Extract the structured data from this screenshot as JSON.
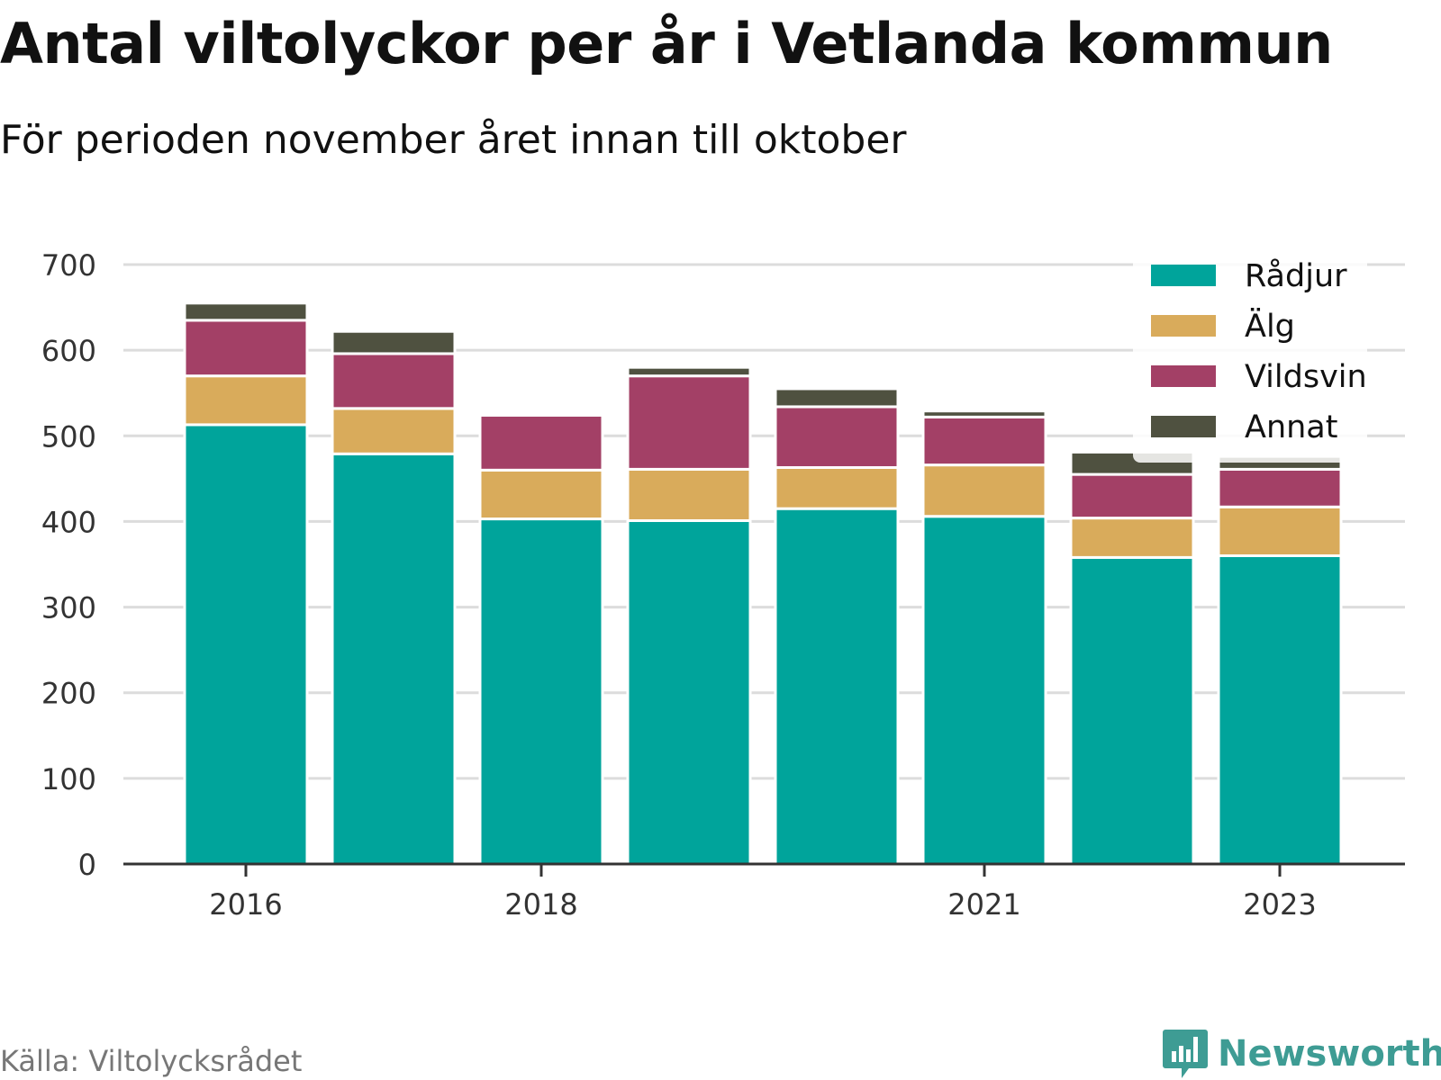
{
  "title": "Antal viltolyckor per år i Vetlanda kommun",
  "subtitle": "För perioden november året innan till oktober",
  "source": "Källa: Viltolycksrådet",
  "brand": "Newsworthy",
  "chart_data": {
    "type": "bar",
    "stacked": true,
    "categories": [
      "2016",
      "2017",
      "2018",
      "2019",
      "2020",
      "2021",
      "2022",
      "2023"
    ],
    "x_tick_labels": [
      "2016",
      "2018",
      "2021",
      "2023"
    ],
    "ylim": [
      0,
      700
    ],
    "y_ticks": [
      0,
      100,
      200,
      300,
      400,
      500,
      600,
      700
    ],
    "grid": true,
    "legend_position": "top-right",
    "series": [
      {
        "name": "Rådjur",
        "color": "#00a49b",
        "values": [
          513,
          479,
          403,
          401,
          415,
          406,
          358,
          360
        ]
      },
      {
        "name": "Älg",
        "color": "#d9ab5b",
        "values": [
          57,
          53,
          57,
          60,
          48,
          60,
          46,
          57
        ]
      },
      {
        "name": "Vildsvin",
        "color": "#a34066",
        "values": [
          65,
          64,
          64,
          109,
          71,
          56,
          51,
          44
        ]
      },
      {
        "name": "Annat",
        "color": "#4f5140",
        "values": [
          20,
          26,
          0,
          10,
          21,
          7,
          26,
          15
        ]
      }
    ]
  }
}
